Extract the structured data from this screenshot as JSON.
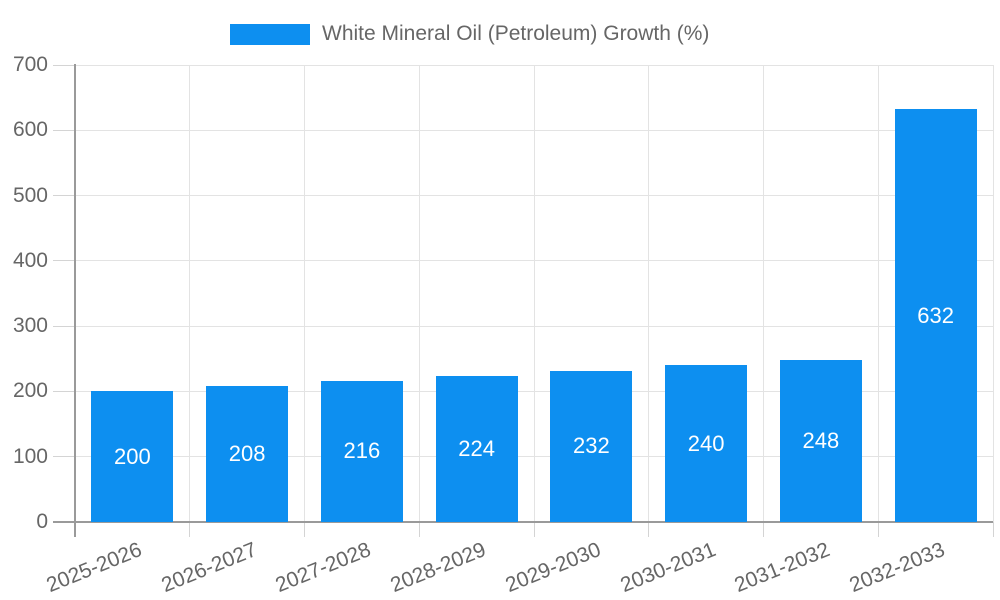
{
  "chart_data": {
    "type": "bar",
    "title": "White Mineral Oil (Petroleum) Growth (%)",
    "categories": [
      "2025-2026",
      "2026-2027",
      "2027-2028",
      "2028-2029",
      "2029-2030",
      "2030-2031",
      "2031-2032",
      "2032-2033"
    ],
    "series": [
      {
        "name": "White Mineral Oil (Petroleum) Growth (%)",
        "values": [
          200,
          208,
          216,
          224,
          232,
          240,
          248,
          632
        ]
      }
    ],
    "values": [
      200,
      208,
      216,
      224,
      232,
      240,
      248,
      632
    ],
    "bar_value_labels": [
      "200",
      "208",
      "216",
      "224",
      "232",
      "240",
      "248",
      "632"
    ],
    "xlabel": "",
    "ylabel": "",
    "ylim": [
      0,
      700
    ],
    "yticks": [
      0,
      100,
      200,
      300,
      400,
      500,
      600,
      700
    ],
    "grid": true,
    "legend_position": "top",
    "x_tick_rotation_deg": -22,
    "colors": {
      "bar": "#0d8ff0",
      "bar_label_text": "#ffffff",
      "axis_text": "#666666",
      "legend_text": "#666666",
      "gridline": "#e3e3e3",
      "axis_line": "#9a9a9a",
      "tick": "#d4d4d4",
      "background": "#ffffff"
    }
  }
}
